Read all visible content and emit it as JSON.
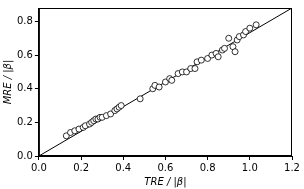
{
  "chart_data": {
    "type": "scatter",
    "x_label": "TRE / |β|",
    "y_label": "MRE / |β|",
    "xlim": [
      0,
      1.2
    ],
    "ylim": [
      0,
      0.88
    ],
    "xticks": [
      {
        "value": 0,
        "label": "0.0"
      },
      0.2,
      0.4,
      0.6,
      0.8,
      {
        "value": 1,
        "label": "1.0"
      },
      1.2
    ],
    "yticks": [
      {
        "value": 0,
        "label": "0.0"
      },
      0.2,
      0.4,
      0.6,
      0.8
    ],
    "grid": false,
    "series": [
      {
        "type": "scatter",
        "marker": "open_circle",
        "color": "#000000",
        "x": [
          0.13,
          0.15,
          0.17,
          0.19,
          0.21,
          0.22,
          0.24,
          0.25,
          0.26,
          0.27,
          0.28,
          0.29,
          0.3,
          0.32,
          0.34,
          0.36,
          0.37,
          0.38,
          0.39,
          0.48,
          0.54,
          0.55,
          0.57,
          0.6,
          0.62,
          0.63,
          0.66,
          0.68,
          0.7,
          0.72,
          0.74,
          0.75,
          0.77,
          0.8,
          0.82,
          0.84,
          0.85,
          0.87,
          0.88,
          0.9,
          0.92,
          0.93,
          0.94,
          0.95,
          0.97,
          0.98,
          1.0,
          1.03
        ],
        "values": [
          0.12,
          0.14,
          0.15,
          0.16,
          0.17,
          0.18,
          0.19,
          0.2,
          0.21,
          0.22,
          0.22,
          0.23,
          0.23,
          0.24,
          0.25,
          0.27,
          0.28,
          0.29,
          0.3,
          0.34,
          0.4,
          0.42,
          0.41,
          0.44,
          0.46,
          0.45,
          0.49,
          0.5,
          0.5,
          0.52,
          0.52,
          0.56,
          0.57,
          0.58,
          0.6,
          0.61,
          0.59,
          0.63,
          0.64,
          0.7,
          0.65,
          0.62,
          0.69,
          0.71,
          0.72,
          0.74,
          0.76,
          0.78
        ]
      },
      {
        "type": "line",
        "line_style": "solid",
        "color": "#000000",
        "x": [
          0,
          1.2
        ],
        "values": [
          0,
          0.88
        ]
      }
    ]
  }
}
